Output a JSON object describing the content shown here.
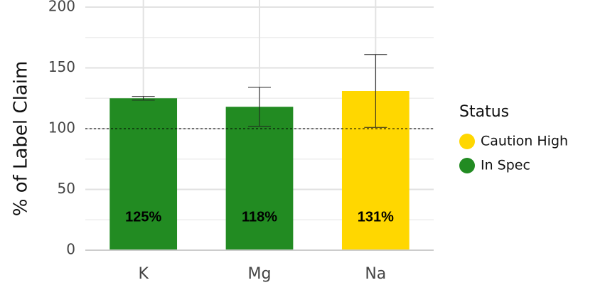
{
  "chart_data": {
    "type": "bar",
    "ylabel": "% of Label Claim",
    "categories": [
      "K",
      "Mg",
      "Na"
    ],
    "values": [
      125,
      118,
      131
    ],
    "value_labels": [
      "125%",
      "118%",
      "131%"
    ],
    "errors": [
      1.5,
      16,
      30
    ],
    "status": [
      "In Spec",
      "In Spec",
      "Caution High"
    ],
    "threshold": 100,
    "ylim": [
      0,
      200
    ],
    "yticks": [
      0,
      50,
      100,
      150,
      200
    ],
    "minor_yticks": [
      25,
      75,
      125,
      175
    ],
    "grid": true,
    "legend": {
      "title": "Status",
      "position": "right",
      "items": [
        {
          "name": "Caution High",
          "color": "#FFD700"
        },
        {
          "name": "In Spec",
          "color": "#228B22"
        }
      ]
    }
  }
}
